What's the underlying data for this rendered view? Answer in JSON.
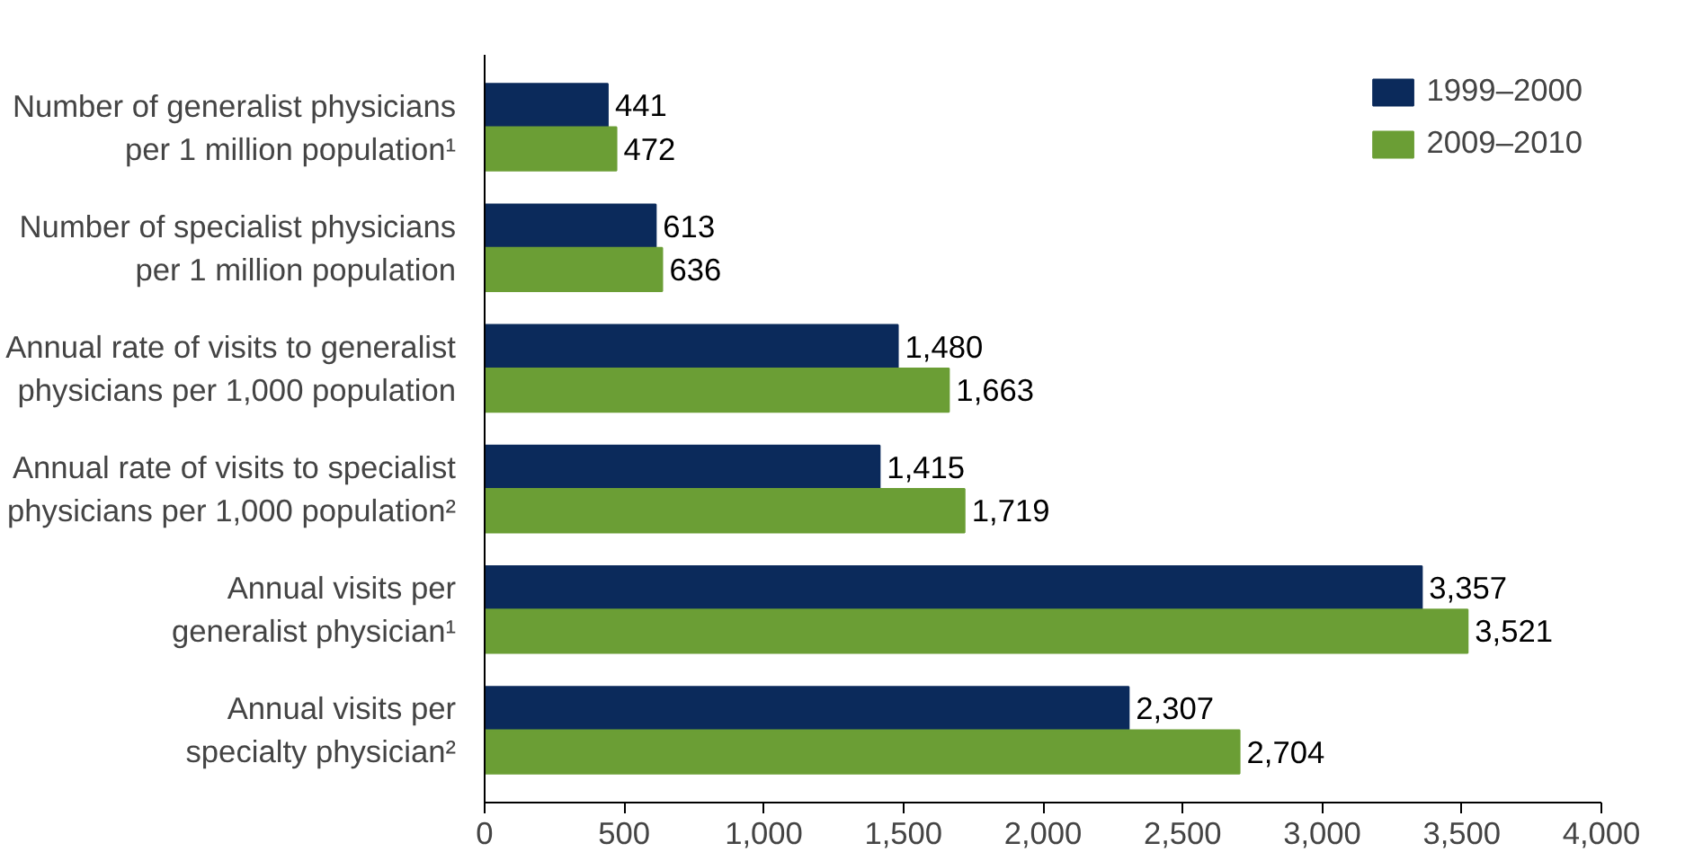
{
  "chart_data": {
    "type": "bar",
    "orientation": "horizontal",
    "categories": [
      "Number of generalist physicians\nper 1 million population¹",
      "Number of specialist physicians\nper 1 million population",
      "Annual rate of visits to generalist\nphysicians per 1,000 population",
      "Annual rate of visits to specialist\nphysicians per 1,000 population²",
      "Annual visits per\ngeneralist physician¹",
      "Annual visits per\nspecialty physician²"
    ],
    "series": [
      {
        "name": "1999–2000",
        "color": "#0b2a5b",
        "values": [
          441,
          613,
          1480,
          1415,
          3357,
          2307
        ],
        "value_labels": [
          "441",
          "613",
          "1,480",
          "1,415",
          "3,357",
          "2,307"
        ]
      },
      {
        "name": "2009–2010",
        "color": "#6b9e35",
        "values": [
          472,
          636,
          1663,
          1719,
          3521,
          2704
        ],
        "value_labels": [
          "472",
          "636",
          "1,663",
          "1,719",
          "3,521",
          "2,704"
        ]
      }
    ],
    "xlim": [
      0,
      4000
    ],
    "xticks": [
      0,
      {
        "value": 500,
        "label": "500"
      },
      {
        "value": 1000,
        "label": "1,000"
      },
      {
        "value": 1500,
        "label": "1,500"
      },
      {
        "value": 2000,
        "label": "2,000"
      },
      {
        "value": 2500,
        "label": "2,500"
      },
      {
        "value": 3000,
        "label": "3,000"
      },
      {
        "value": 3500,
        "label": "3,500"
      },
      {
        "value": 4000,
        "label": "4,000"
      }
    ],
    "grid": false,
    "legend": "top right"
  }
}
